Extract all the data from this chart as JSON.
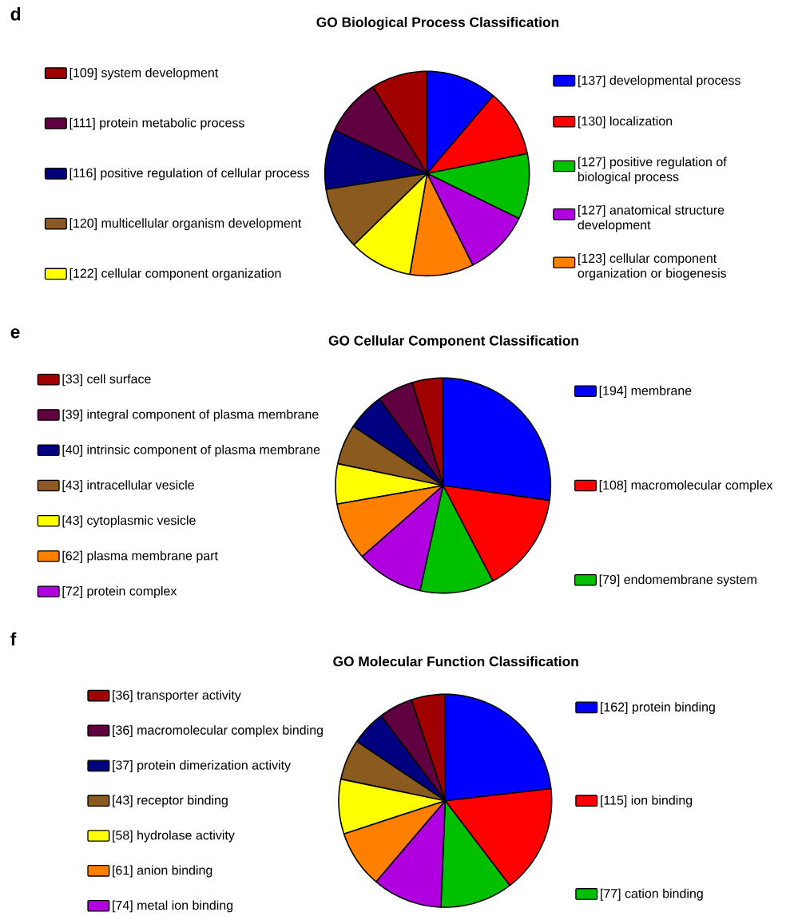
{
  "chart_data": [
    {
      "type": "pie",
      "title": "GO Biological Process Classification",
      "annotations": [
        "d"
      ],
      "legend": "bottom left",
      "categories": [
        "[137] developmental process",
        "[130] localization",
        "[127] positive regulation of biological process",
        "[127] anatomical structure development",
        "[123] cellular component organization or biogenesis",
        "[122] cellular component organization",
        "[120] multicellular organism development",
        "[116] positive regulation of cellular process",
        "[111] protein metabolic process",
        "[109] system development"
      ],
      "values": [
        137,
        130,
        127,
        127,
        123,
        122,
        120,
        116,
        111,
        109
      ],
      "colors": [
        "#0000ff",
        "#ff0000",
        "#00c000",
        "#b000e0",
        "#ff8000",
        "#ffff00",
        "#8b5a1e",
        "#000080",
        "#600040",
        "#a00000"
      ]
    },
    {
      "type": "pie",
      "title": "GO Cellular Component Classification",
      "annotations": [
        "e"
      ],
      "legend": "bottom left",
      "categories": [
        "[194] membrane",
        "[108] macromolecular complex",
        "[79] endomembrane system",
        "[72] protein complex",
        "[62] plasma membrane part",
        "[43] cytoplasmic vesicle",
        "[43] intracellular vesicle",
        "[40] intrinsic component of plasma membrane",
        "[39] integral component of plasma membrane",
        "[33] cell surface"
      ],
      "values": [
        194,
        108,
        79,
        72,
        62,
        43,
        43,
        40,
        39,
        33
      ],
      "colors": [
        "#0000ff",
        "#ff0000",
        "#00c000",
        "#b000e0",
        "#ff8000",
        "#ffff00",
        "#8b5a1e",
        "#000080",
        "#600040",
        "#a00000"
      ]
    },
    {
      "type": "pie",
      "title": "GO Molecular Function Classification",
      "annotations": [
        "f"
      ],
      "legend": "bottom left",
      "categories": [
        "[162] protein binding",
        "[115] ion binding",
        "[77] cation binding",
        "[74] metal ion binding",
        "[61] anion binding",
        "[58] hydrolase activity",
        "[43] receptor binding",
        "[37] protein dimerization activity",
        "[36] macromolecular complex binding",
        "[36] transporter activity"
      ],
      "values": [
        162,
        115,
        77,
        74,
        61,
        58,
        43,
        37,
        36,
        36
      ],
      "colors": [
        "#0000ff",
        "#ff0000",
        "#00c000",
        "#b000e0",
        "#ff8000",
        "#ffff00",
        "#8b5a1e",
        "#000080",
        "#600040",
        "#a00000"
      ]
    }
  ]
}
